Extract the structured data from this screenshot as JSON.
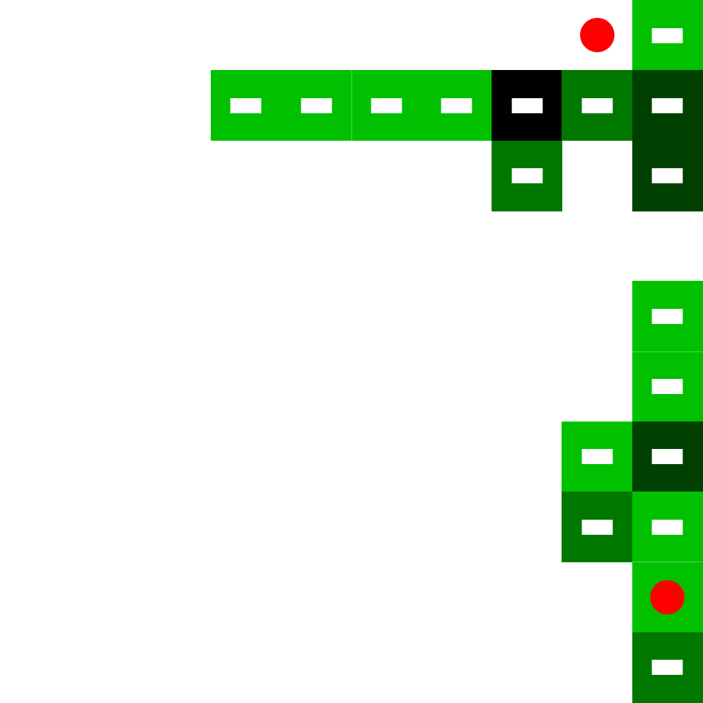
{
  "palette": {
    "background": "#ffffff",
    "slot": "#ffffff",
    "marker": "#ff0000",
    "level": {
      "0": "#000000",
      "1": "#004000",
      "2": "#007800",
      "3": "#00c000"
    }
  },
  "board": {
    "tiles": [
      {
        "col": 9,
        "row": 0,
        "level": 3
      },
      {
        "col": 3,
        "row": 1,
        "level": 3
      },
      {
        "col": 4,
        "row": 1,
        "level": 3
      },
      {
        "col": 5,
        "row": 1,
        "level": 3
      },
      {
        "col": 6,
        "row": 1,
        "level": 3
      },
      {
        "col": 7,
        "row": 1,
        "level": 0
      },
      {
        "col": 8,
        "row": 1,
        "level": 2
      },
      {
        "col": 9,
        "row": 1,
        "level": 1
      },
      {
        "col": 7,
        "row": 2,
        "level": 2
      },
      {
        "col": 9,
        "row": 2,
        "level": 1
      },
      {
        "col": 9,
        "row": 4,
        "level": 3
      },
      {
        "col": 9,
        "row": 5,
        "level": 3
      },
      {
        "col": 8,
        "row": 6,
        "level": 3
      },
      {
        "col": 9,
        "row": 6,
        "level": 1
      },
      {
        "col": 8,
        "row": 7,
        "level": 2
      },
      {
        "col": 9,
        "row": 7,
        "level": 3
      },
      {
        "col": 9,
        "row": 8,
        "level": 3,
        "slot": false
      },
      {
        "col": 9,
        "row": 9,
        "level": 2
      }
    ],
    "markers": [
      {
        "col": 8,
        "row": 0
      },
      {
        "col": 9,
        "row": 8
      }
    ]
  }
}
